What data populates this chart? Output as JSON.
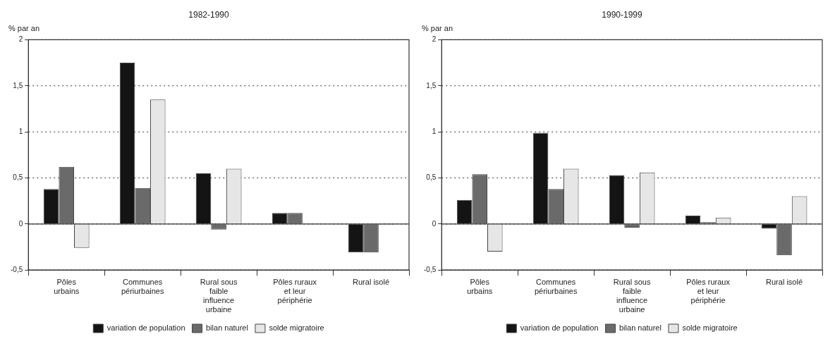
{
  "chart_data": [
    {
      "type": "bar",
      "title": "1982-1990",
      "ylabel": "% par an",
      "categories": [
        "Pôles urbains",
        "Communes périurbaines",
        "Rural sous faible influence urbaine",
        "Pôles ruraux et leur périphérie",
        "Rural isolé"
      ],
      "series": [
        {
          "name": "variation de population",
          "color": "#141414",
          "values": [
            0.38,
            1.75,
            0.55,
            0.12,
            -0.31
          ]
        },
        {
          "name": "bilan naturel",
          "color": "#6a6a6a",
          "values": [
            0.62,
            0.39,
            -0.06,
            0.12,
            -0.31
          ]
        },
        {
          "name": "solde migratoire",
          "color": "#e6e6e6",
          "values": [
            -0.26,
            1.35,
            0.6,
            0,
            -0.01
          ]
        }
      ],
      "ylim": [
        -0.5,
        2
      ],
      "yticks": [
        {
          "value": -0.5,
          "label": "-0,5"
        },
        0,
        {
          "value": 0.5,
          "label": "0,5"
        },
        1,
        {
          "value": 1.5,
          "label": "1,5"
        },
        2
      ],
      "grid": "y",
      "legend": "bottom"
    },
    {
      "type": "bar",
      "title": "1990-1999",
      "ylabel": "% par an",
      "categories": [
        "Pôles urbains",
        "Communes périurbaines",
        "Rural sous faible influence urbaine",
        "Pôles ruraux et leur périphérie",
        "Rural isolé"
      ],
      "series": [
        {
          "name": "variation de population",
          "color": "#141414",
          "values": [
            0.26,
            0.99,
            0.53,
            0.09,
            -0.05
          ]
        },
        {
          "name": "bilan naturel",
          "color": "#6a6a6a",
          "values": [
            0.54,
            0.38,
            -0.04,
            0.02,
            -0.34
          ]
        },
        {
          "name": "solde migratoire",
          "color": "#e6e6e6",
          "values": [
            -0.3,
            0.6,
            0.56,
            0.07,
            0.3
          ]
        }
      ],
      "ylim": [
        -0.5,
        2
      ],
      "yticks": [
        {
          "value": -0.5,
          "label": "-0,5"
        },
        0,
        {
          "value": 0.5,
          "label": "0,5"
        },
        1,
        {
          "value": 1.5,
          "label": "1,5"
        },
        2
      ],
      "grid": "y",
      "legend": "bottom"
    }
  ]
}
